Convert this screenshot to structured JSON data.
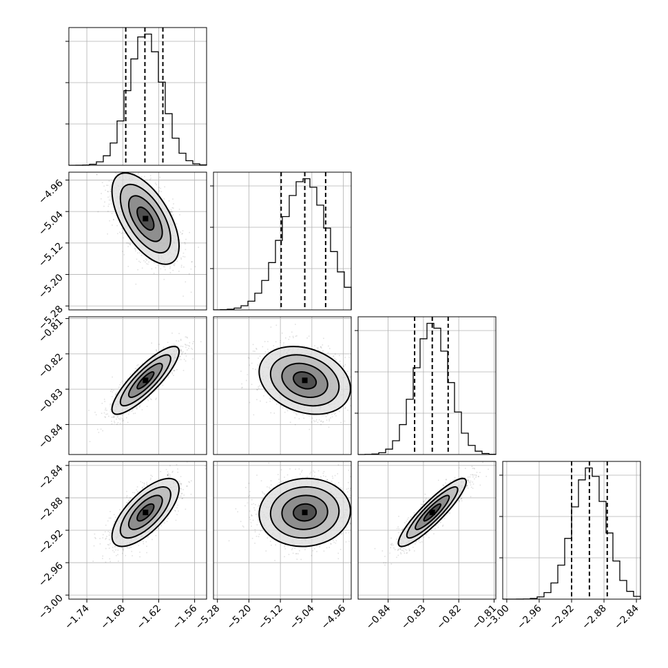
{
  "chart_data": {
    "type": "corner",
    "grid": true,
    "parameters": [
      {
        "range": [
          -1.77,
          -1.54
        ],
        "ticks": [
          -1.74,
          -1.68,
          -1.62,
          -1.56
        ],
        "tick_labels": [
          "−1.74",
          "−1.68",
          "−1.62",
          "−1.56"
        ],
        "mean": -1.642,
        "sd": 0.028,
        "quantiles": [
          -1.675,
          -1.643,
          -1.613
        ]
      },
      {
        "range": [
          -5.29,
          -4.94
        ],
        "ticks": [
          -5.28,
          -5.2,
          -5.12,
          -5.04,
          -4.96
        ],
        "tick_labels": [
          "−5.28",
          "−5.20",
          "−5.12",
          "−5.04",
          "−4.96"
        ],
        "mean": -5.058,
        "sd": 0.058,
        "quantiles": [
          -5.118,
          -5.058,
          -5.005
        ]
      },
      {
        "range": [
          -0.8485,
          -0.8095
        ],
        "ticks": [
          -0.84,
          -0.83,
          -0.82,
          -0.81
        ],
        "tick_labels": [
          "−0.84",
          "−0.83",
          "−0.82",
          "−0.81"
        ],
        "mean": -0.8275,
        "sd": 0.0048,
        "quantiles": [
          -0.8325,
          -0.8275,
          -0.823
        ]
      },
      {
        "range": [
          -3.005,
          -2.835
        ],
        "ticks": [
          -3.0,
          -2.96,
          -2.92,
          -2.88,
          -2.84
        ],
        "tick_labels": [
          "−3.00",
          "−2.96",
          "−2.92",
          "−2.88",
          "−2.84"
        ],
        "mean": -2.898,
        "sd": 0.021,
        "quantiles": [
          -2.92,
          -2.898,
          -2.876
        ]
      }
    ],
    "correlations": {
      "1-0": -0.6,
      "2-0": 0.85,
      "2-1": -0.25,
      "3-0": 0.7,
      "3-1": 0.05,
      "3-2": 0.9
    },
    "contour_levels_sigma": [
      0.5,
      1.0,
      1.5,
      2.0
    ],
    "histogram_bins": 20
  }
}
